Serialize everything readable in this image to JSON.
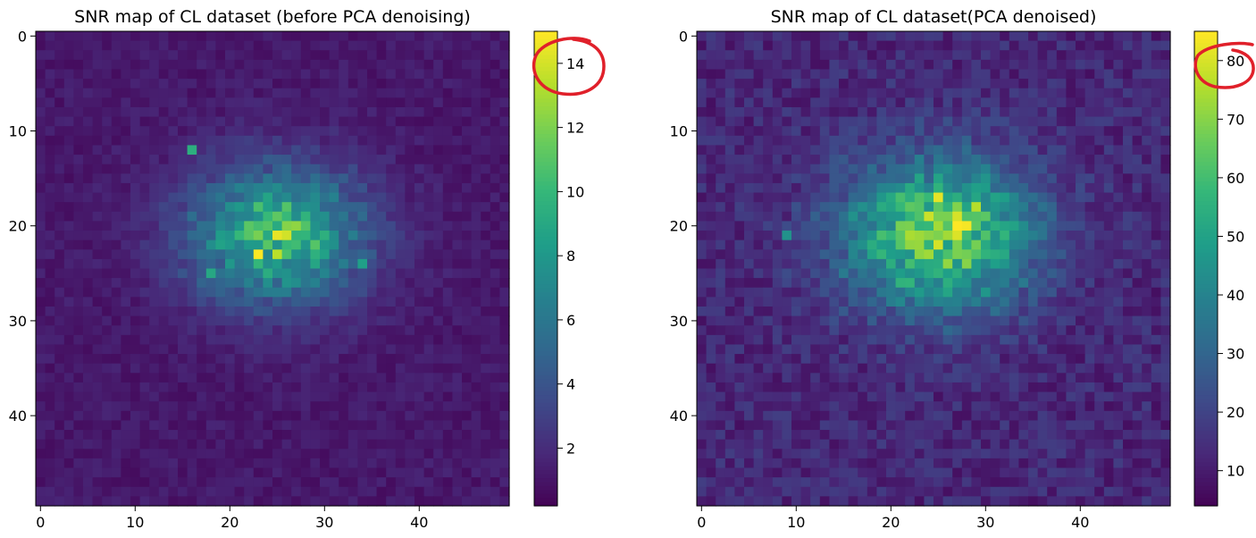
{
  "chart_data": [
    {
      "type": "heatmap",
      "title": "SNR map of CL dataset (before PCA denoising)",
      "grid_size": [
        50,
        50
      ],
      "colormap": "viridis",
      "xlim": [
        0,
        49
      ],
      "ylim": [
        49,
        0
      ],
      "xticks": [
        "0",
        "10",
        "20",
        "30",
        "40"
      ],
      "yticks": [
        "0",
        "10",
        "20",
        "30",
        "40"
      ],
      "xtick_values": [
        0,
        10,
        20,
        30,
        40
      ],
      "ytick_values": [
        0,
        10,
        20,
        30,
        40
      ],
      "value_range": [
        0.2,
        15.0
      ],
      "background_level": 1.2,
      "blob": {
        "center_x": 25,
        "center_y": 21,
        "sigma_x": 6.5,
        "sigma_y": 5.0,
        "peak": 9.0
      },
      "hot_pixels": [
        [
          23,
          23,
          15.0
        ],
        [
          25,
          23,
          13.5
        ],
        [
          25,
          21,
          14.5
        ],
        [
          26,
          21,
          14.0
        ],
        [
          27,
          20,
          12.5
        ],
        [
          16,
          12,
          9.5
        ],
        [
          18,
          25,
          9.0
        ],
        [
          34,
          24,
          8.5
        ]
      ],
      "colorbar": {
        "ticks": [
          "2",
          "4",
          "6",
          "8",
          "10",
          "12",
          "14"
        ],
        "tick_values": [
          2,
          4,
          6,
          8,
          10,
          12,
          14
        ]
      },
      "grid": false
    },
    {
      "type": "heatmap",
      "title": "SNR map of CL dataset(PCA denoised)",
      "grid_size": [
        50,
        50
      ],
      "colormap": "viridis",
      "xlim": [
        0,
        49
      ],
      "ylim": [
        49,
        0
      ],
      "xticks": [
        "0",
        "10",
        "20",
        "30",
        "40"
      ],
      "yticks": [
        "0",
        "10",
        "20",
        "30",
        "40"
      ],
      "xtick_values": [
        0,
        10,
        20,
        30,
        40
      ],
      "ytick_values": [
        0,
        10,
        20,
        30,
        40
      ],
      "value_range": [
        4,
        85
      ],
      "background_level": 13,
      "blob": {
        "center_x": 25,
        "center_y": 21,
        "sigma_x": 7.0,
        "sigma_y": 5.5,
        "peak": 55
      },
      "hot_pixels": [
        [
          27,
          20,
          85
        ],
        [
          28,
          20,
          84
        ],
        [
          25,
          17,
          82
        ],
        [
          25,
          22,
          80
        ],
        [
          29,
          18,
          76
        ],
        [
          9,
          21,
          45
        ]
      ],
      "colorbar": {
        "ticks": [
          "10",
          "20",
          "30",
          "40",
          "50",
          "60",
          "70",
          "80"
        ],
        "tick_values": [
          10,
          20,
          30,
          40,
          50,
          60,
          70,
          80
        ]
      },
      "grid": false
    }
  ],
  "annotations": [
    {
      "shape": "hand-drawn-circle",
      "color": "#e0202a",
      "target": "colorbar-1-top-tick"
    },
    {
      "shape": "hand-drawn-circle",
      "color": "#e0202a",
      "target": "colorbar-2-top-tick"
    }
  ]
}
